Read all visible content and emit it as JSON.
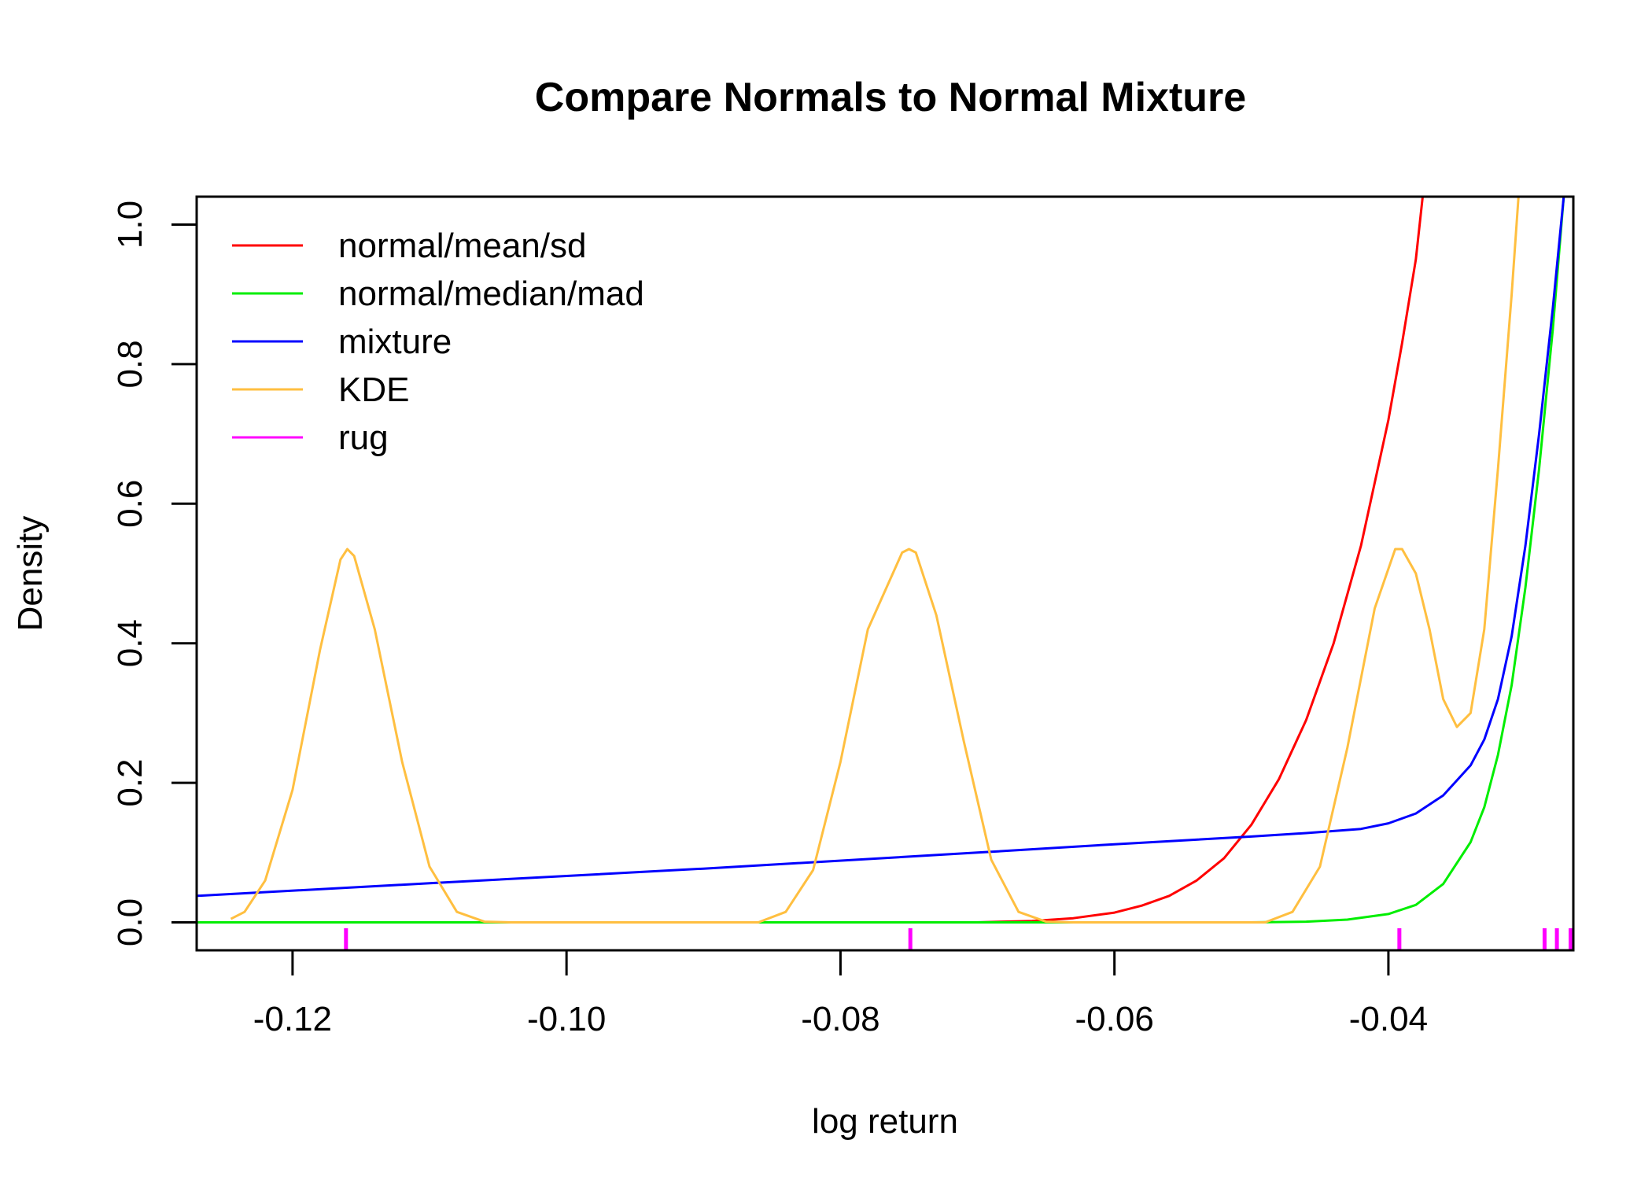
{
  "chart_data": {
    "type": "line",
    "title": "Compare Normals to Normal Mixture",
    "xlabel": "log return",
    "ylabel": "Density",
    "xlim": [
      -0.127,
      -0.0265
    ],
    "ylim": [
      -0.04,
      1.04
    ],
    "x_ticks": [
      -0.12,
      -0.1,
      -0.08,
      -0.06,
      -0.04
    ],
    "x_tick_labels": [
      "-0.12",
      "-0.10",
      "-0.08",
      "-0.06",
      "-0.04"
    ],
    "y_ticks": [
      0.0,
      0.2,
      0.4,
      0.6,
      0.8,
      1.0
    ],
    "y_tick_labels": [
      "0.0",
      "0.2",
      "0.4",
      "0.6",
      "0.8",
      "1.0"
    ],
    "legend_position": "top-left",
    "grid": false,
    "series": [
      {
        "name": "normal/mean/sd",
        "color": "#ff0000",
        "points": [
          [
            -0.07,
            0.0
          ],
          [
            -0.066,
            0.002
          ],
          [
            -0.063,
            0.006
          ],
          [
            -0.06,
            0.014
          ],
          [
            -0.058,
            0.024
          ],
          [
            -0.056,
            0.038
          ],
          [
            -0.054,
            0.06
          ],
          [
            -0.052,
            0.092
          ],
          [
            -0.05,
            0.14
          ],
          [
            -0.048,
            0.205
          ],
          [
            -0.046,
            0.29
          ],
          [
            -0.044,
            0.4
          ],
          [
            -0.042,
            0.54
          ],
          [
            -0.04,
            0.72
          ],
          [
            -0.039,
            0.83
          ],
          [
            -0.038,
            0.95
          ],
          [
            -0.0375,
            1.04
          ]
        ]
      },
      {
        "name": "normal/median/mad",
        "color": "#00ee00",
        "points": [
          [
            -0.127,
            0.0
          ],
          [
            -0.05,
            0.0
          ],
          [
            -0.046,
            0.001
          ],
          [
            -0.043,
            0.004
          ],
          [
            -0.04,
            0.012
          ],
          [
            -0.038,
            0.025
          ],
          [
            -0.036,
            0.055
          ],
          [
            -0.034,
            0.115
          ],
          [
            -0.033,
            0.165
          ],
          [
            -0.032,
            0.24
          ],
          [
            -0.031,
            0.34
          ],
          [
            -0.03,
            0.48
          ],
          [
            -0.029,
            0.65
          ],
          [
            -0.028,
            0.85
          ],
          [
            -0.0272,
            1.04
          ]
        ]
      },
      {
        "name": "mixture",
        "color": "#0000ff",
        "points": [
          [
            -0.127,
            0.038
          ],
          [
            -0.11,
            0.056
          ],
          [
            -0.09,
            0.077
          ],
          [
            -0.07,
            0.1
          ],
          [
            -0.06,
            0.112
          ],
          [
            -0.05,
            0.123
          ],
          [
            -0.046,
            0.128
          ],
          [
            -0.042,
            0.134
          ],
          [
            -0.04,
            0.142
          ],
          [
            -0.038,
            0.156
          ],
          [
            -0.036,
            0.182
          ],
          [
            -0.034,
            0.225
          ],
          [
            -0.033,
            0.262
          ],
          [
            -0.032,
            0.32
          ],
          [
            -0.031,
            0.41
          ],
          [
            -0.03,
            0.54
          ],
          [
            -0.029,
            0.7
          ],
          [
            -0.028,
            0.88
          ],
          [
            -0.0272,
            1.04
          ]
        ]
      },
      {
        "name": "KDE",
        "color": "#ffbf40",
        "points": [
          [
            -0.1245,
            0.005
          ],
          [
            -0.1235,
            0.015
          ],
          [
            -0.122,
            0.06
          ],
          [
            -0.12,
            0.19
          ],
          [
            -0.118,
            0.39
          ],
          [
            -0.1165,
            0.52
          ],
          [
            -0.116,
            0.535
          ],
          [
            -0.1155,
            0.525
          ],
          [
            -0.114,
            0.42
          ],
          [
            -0.112,
            0.23
          ],
          [
            -0.11,
            0.08
          ],
          [
            -0.108,
            0.015
          ],
          [
            -0.106,
            0.001
          ],
          [
            -0.104,
            0.0
          ],
          [
            -0.086,
            0.0
          ],
          [
            -0.084,
            0.015
          ],
          [
            -0.082,
            0.075
          ],
          [
            -0.08,
            0.23
          ],
          [
            -0.078,
            0.42
          ],
          [
            -0.0755,
            0.53
          ],
          [
            -0.075,
            0.535
          ],
          [
            -0.0745,
            0.53
          ],
          [
            -0.073,
            0.44
          ],
          [
            -0.071,
            0.26
          ],
          [
            -0.069,
            0.09
          ],
          [
            -0.067,
            0.015
          ],
          [
            -0.065,
            0.001
          ],
          [
            -0.063,
            0.0
          ],
          [
            -0.049,
            0.0
          ],
          [
            -0.047,
            0.015
          ],
          [
            -0.045,
            0.08
          ],
          [
            -0.043,
            0.25
          ],
          [
            -0.041,
            0.45
          ],
          [
            -0.0395,
            0.535
          ],
          [
            -0.039,
            0.535
          ],
          [
            -0.038,
            0.5
          ],
          [
            -0.037,
            0.42
          ],
          [
            -0.036,
            0.32
          ],
          [
            -0.035,
            0.28
          ],
          [
            -0.034,
            0.3
          ],
          [
            -0.033,
            0.42
          ],
          [
            -0.032,
            0.65
          ],
          [
            -0.031,
            0.9
          ],
          [
            -0.0305,
            1.04
          ]
        ]
      },
      {
        "name": "rug",
        "color": "#ff00ff",
        "values": [
          -0.1161,
          -0.0749,
          -0.0392,
          -0.0286,
          -0.0277,
          -0.0267
        ]
      }
    ]
  }
}
